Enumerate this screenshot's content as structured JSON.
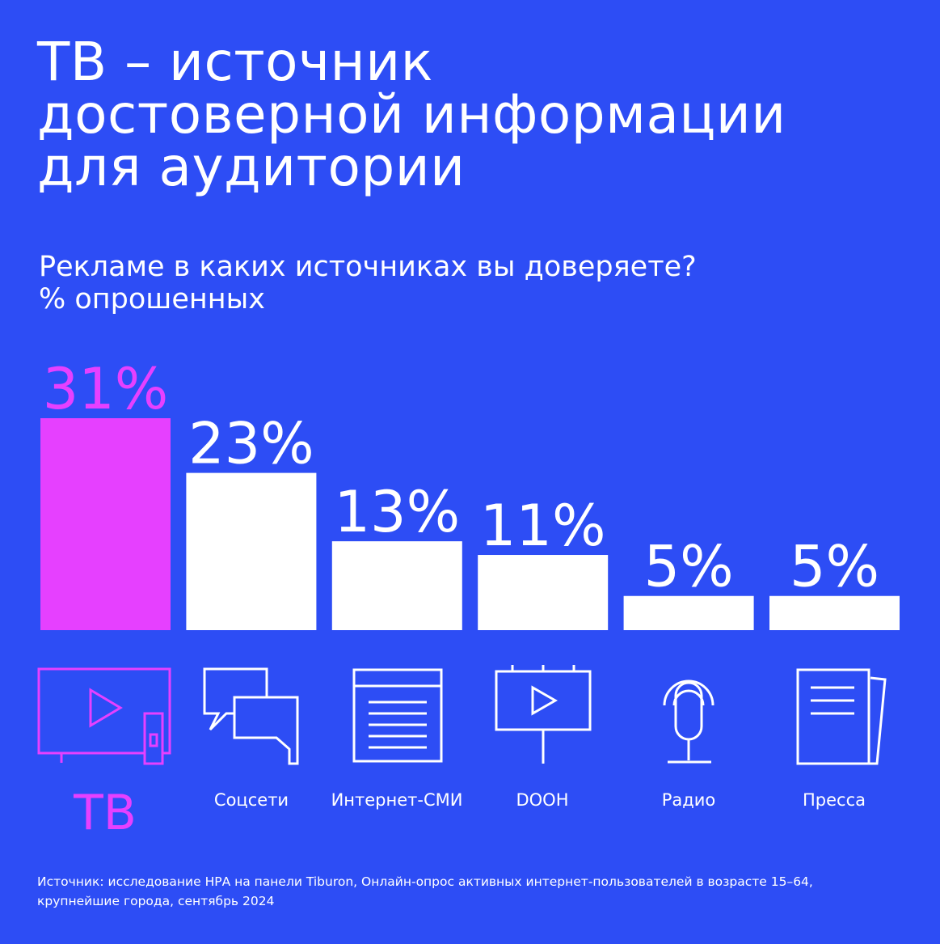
{
  "title": "ТВ – источник\nдостоверной информации\nдля аудитории",
  "subtitle": "Рекламе в каких источниках вы доверяете?\n% опрошенных",
  "source": "Источник: исследование НРА на панели Tiburon, Онлайн-опрос активных интернет-пользователей в возрасте 15–64,\nкрупнейшие города, сентябрь 2024",
  "colors": {
    "background": "#2d4df5",
    "highlight": "#e640ff",
    "bar": "#ffffff"
  },
  "icons": [
    "tv-icon",
    "chat-bubbles-icon",
    "browser-window-icon",
    "billboard-icon",
    "microphone-icon",
    "newspaper-icon"
  ],
  "chart_data": {
    "type": "bar",
    "categories": [
      "ТВ",
      "Соцсети",
      "Интернет-СМИ",
      "DOOH",
      "Радио",
      "Пресса"
    ],
    "values": [
      31,
      23,
      13,
      11,
      5,
      5
    ],
    "value_labels": [
      "31%",
      "23%",
      "13%",
      "11%",
      "5%",
      "5%"
    ],
    "highlight_index": 0,
    "ylim": [
      0,
      31
    ],
    "grid": false,
    "legend": "none"
  }
}
